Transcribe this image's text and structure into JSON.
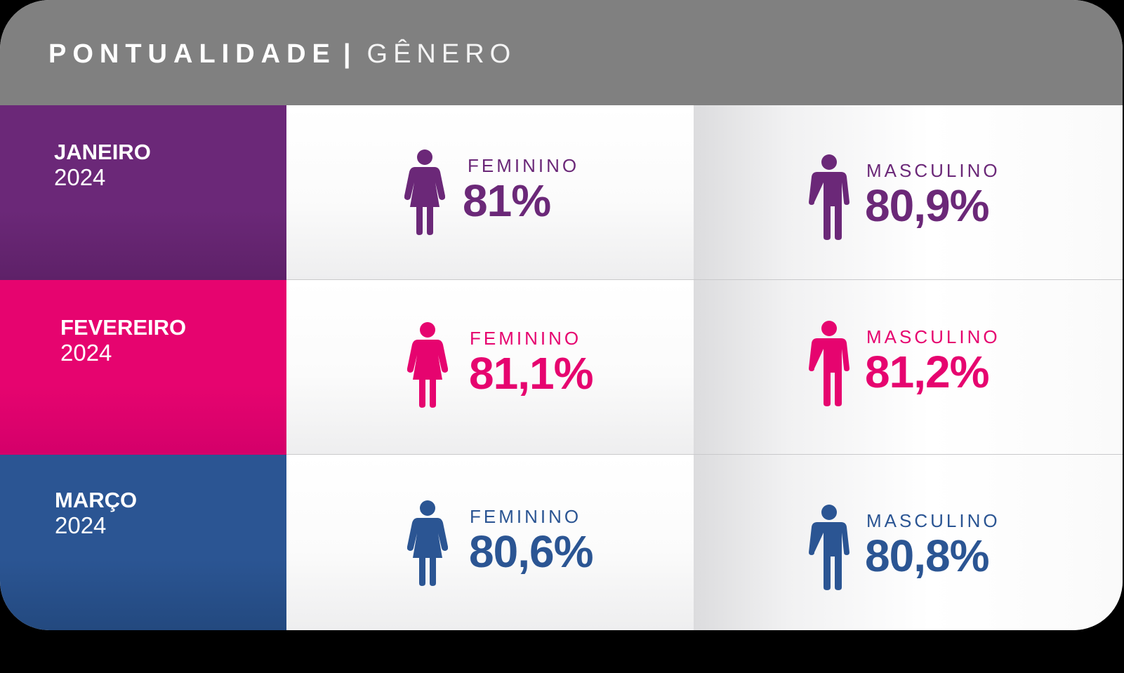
{
  "header": {
    "title": "PONTUALIDADE",
    "separator": "|",
    "subtitle": "GÊNERO"
  },
  "rows": [
    {
      "month": "JANEIRO",
      "year": "2024",
      "color": "#6b2878",
      "female": {
        "label": "FEMININO",
        "value": "81%",
        "icon": "female-person-icon"
      },
      "male": {
        "label": "MASCULINO",
        "value": "80,9%",
        "icon": "male-person-icon"
      }
    },
    {
      "month": "FEVEREIRO",
      "year": "2024",
      "color": "#e6046f",
      "female": {
        "label": "FEMININO",
        "value": "81,1%",
        "icon": "female-person-icon"
      },
      "male": {
        "label": "MASCULINO",
        "value": "81,2%",
        "icon": "male-person-icon"
      }
    },
    {
      "month": "MARÇO",
      "year": "2024",
      "color": "#2b5593",
      "female": {
        "label": "FEMININO",
        "value": "80,6%",
        "icon": "female-person-icon"
      },
      "male": {
        "label": "MASCULINO",
        "value": "80,8%",
        "icon": "male-person-icon"
      }
    }
  ]
}
